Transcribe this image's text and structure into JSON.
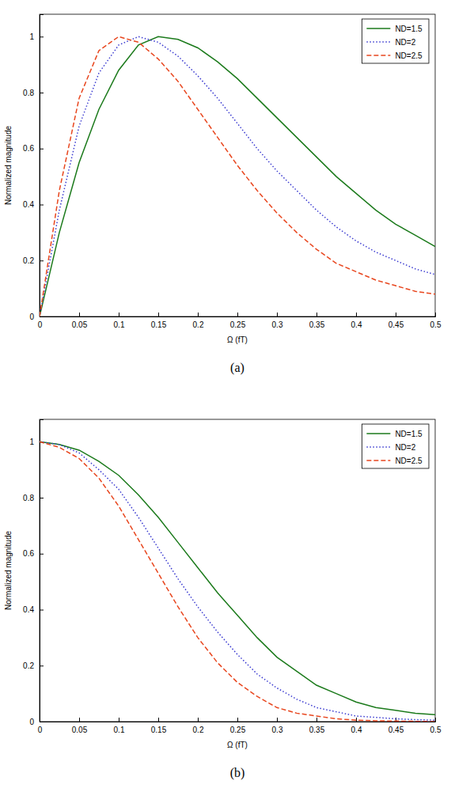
{
  "chart_data": [
    {
      "type": "line",
      "title": "(a)",
      "x_label": "Ω (fT)",
      "y_label": "Normalized magnitude",
      "x": [
        0,
        0.025,
        0.05,
        0.075,
        0.1,
        0.125,
        0.15,
        0.175,
        0.2,
        0.225,
        0.25,
        0.275,
        0.3,
        0.325,
        0.35,
        0.375,
        0.4,
        0.425,
        0.45,
        0.475,
        0.5
      ],
      "series": [
        {
          "name": "ND=1.5",
          "color": "#1b7a1b",
          "line_style": "solid",
          "values": [
            0,
            0.3,
            0.55,
            0.74,
            0.88,
            0.97,
            1.0,
            0.99,
            0.96,
            0.91,
            0.85,
            0.78,
            0.71,
            0.64,
            0.57,
            0.5,
            0.44,
            0.38,
            0.33,
            0.29,
            0.25
          ]
        },
        {
          "name": "ND=2",
          "color": "#3a3ad0",
          "line_style": "dotted",
          "values": [
            0,
            0.38,
            0.68,
            0.87,
            0.97,
            1.0,
            0.98,
            0.93,
            0.86,
            0.78,
            0.69,
            0.6,
            0.52,
            0.45,
            0.38,
            0.32,
            0.27,
            0.23,
            0.2,
            0.17,
            0.15
          ]
        },
        {
          "name": "ND=2.5",
          "color": "#e8461e",
          "line_style": "dashed",
          "values": [
            0,
            0.45,
            0.78,
            0.95,
            1.0,
            0.98,
            0.92,
            0.84,
            0.74,
            0.64,
            0.54,
            0.45,
            0.37,
            0.3,
            0.24,
            0.19,
            0.16,
            0.13,
            0.11,
            0.09,
            0.08
          ]
        }
      ],
      "xlim": [
        0,
        0.5
      ],
      "xticks": [
        0,
        0.05,
        0.1,
        0.15,
        0.2,
        0.25,
        0.3,
        0.35,
        0.4,
        0.45,
        0.5
      ],
      "ylim": [
        0,
        1.08
      ],
      "yticks": [
        0,
        0.2,
        0.4,
        0.6,
        0.8,
        1
      ],
      "grid": false,
      "legend": "upper right"
    },
    {
      "type": "line",
      "title": "(b)",
      "x_label": "Ω (fT)",
      "y_label": "Normalized magnitude",
      "x": [
        0,
        0.025,
        0.05,
        0.075,
        0.1,
        0.125,
        0.15,
        0.175,
        0.2,
        0.225,
        0.25,
        0.275,
        0.3,
        0.325,
        0.35,
        0.375,
        0.4,
        0.425,
        0.45,
        0.475,
        0.5
      ],
      "series": [
        {
          "name": "ND=1.5",
          "color": "#1b7a1b",
          "line_style": "solid",
          "values": [
            1,
            0.99,
            0.97,
            0.93,
            0.88,
            0.81,
            0.73,
            0.64,
            0.55,
            0.46,
            0.38,
            0.3,
            0.23,
            0.18,
            0.13,
            0.1,
            0.07,
            0.05,
            0.04,
            0.03,
            0.025
          ]
        },
        {
          "name": "ND=2",
          "color": "#3a3ad0",
          "line_style": "dotted",
          "values": [
            1,
            0.99,
            0.96,
            0.9,
            0.83,
            0.73,
            0.62,
            0.51,
            0.41,
            0.32,
            0.24,
            0.17,
            0.12,
            0.08,
            0.05,
            0.035,
            0.02,
            0.015,
            0.01,
            0.007,
            0.005
          ]
        },
        {
          "name": "ND=2.5",
          "color": "#e8461e",
          "line_style": "dashed",
          "values": [
            1,
            0.98,
            0.94,
            0.87,
            0.77,
            0.65,
            0.53,
            0.41,
            0.3,
            0.21,
            0.14,
            0.09,
            0.05,
            0.03,
            0.02,
            0.01,
            0.005,
            0.003,
            0.002,
            0.001,
            0
          ]
        }
      ],
      "xlim": [
        0,
        0.5
      ],
      "xticks": [
        0,
        0.05,
        0.1,
        0.15,
        0.2,
        0.25,
        0.3,
        0.35,
        0.4,
        0.45,
        0.5
      ],
      "ylim": [
        0,
        1.08
      ],
      "yticks": [
        0,
        0.2,
        0.4,
        0.6,
        0.8,
        1
      ],
      "grid": false,
      "legend": "upper right"
    }
  ]
}
